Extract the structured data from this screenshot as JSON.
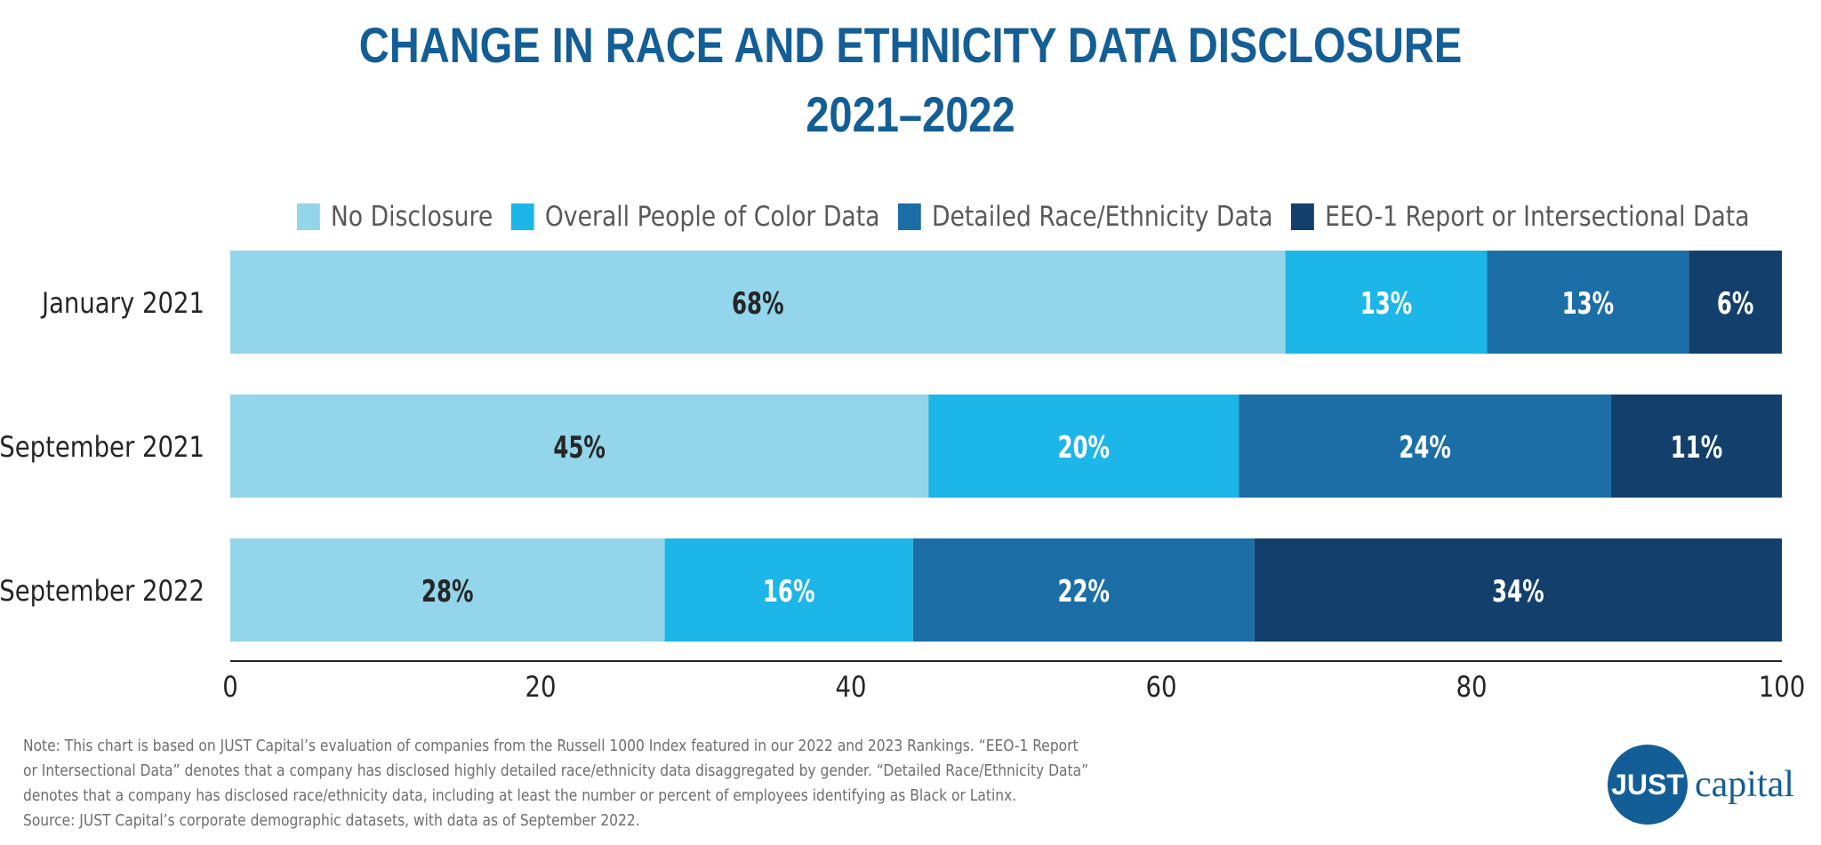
{
  "title": {
    "line1": "CHANGE IN RACE AND ETHNICITY DATA DISCLOSURE",
    "line2": "2021–2022"
  },
  "chart_data": {
    "type": "bar",
    "orientation": "horizontal",
    "stacked": true,
    "title": "CHANGE IN RACE AND ETHNICITY DATA DISCLOSURE 2021–2022",
    "categories": [
      "January 2021",
      "September 2021",
      "September 2022"
    ],
    "series": [
      {
        "name": "No Disclosure",
        "color": "#93d5ea",
        "label_color": "#262626",
        "values": [
          68,
          45,
          28
        ],
        "labels": [
          "68%",
          "45%",
          "28%"
        ]
      },
      {
        "name": "Overall People of Color Data",
        "color": "#1cb6e8",
        "label_color": "#ffffff",
        "values": [
          13,
          20,
          16
        ],
        "labels": [
          "13%",
          "20%",
          "16%"
        ]
      },
      {
        "name": "Detailed Race/Ethnicity Data",
        "color": "#1b6fa6",
        "label_color": "#ffffff",
        "values": [
          13,
          24,
          22
        ],
        "labels": [
          "13%",
          "24%",
          "22%"
        ]
      },
      {
        "name": "EEO-1 Report or Intersectional Data",
        "color": "#133f6c",
        "label_color": "#ffffff",
        "values": [
          6,
          11,
          34
        ],
        "labels": [
          "6%",
          "11%",
          "34%"
        ]
      }
    ],
    "xlim": [
      0,
      100
    ],
    "xticks": [
      "0",
      "20",
      "40",
      "60",
      "80",
      "100"
    ],
    "xlabel": "",
    "ylabel": "",
    "grid": false,
    "legend_position": "top"
  },
  "note": {
    "lines": [
      "Note: This chart is based on JUST Capital’s evaluation of companies from the Russell 1000 Index featured in our 2022 and 2023 Rankings. “EEO-1 Report",
      "or Intersectional Data” denotes that a company has disclosed highly detailed race/ethnicity data disaggregated by gender. “Detailed Race/Ethnicity Data”",
      "denotes that a company has disclosed race/ethnicity data, including at least the number or percent of employees identifying as Black or Latinx.",
      "Source: JUST Capital’s corporate demographic datasets, with data as of September 2022."
    ]
  },
  "logo": {
    "mark": "JUST",
    "word": "capital"
  }
}
